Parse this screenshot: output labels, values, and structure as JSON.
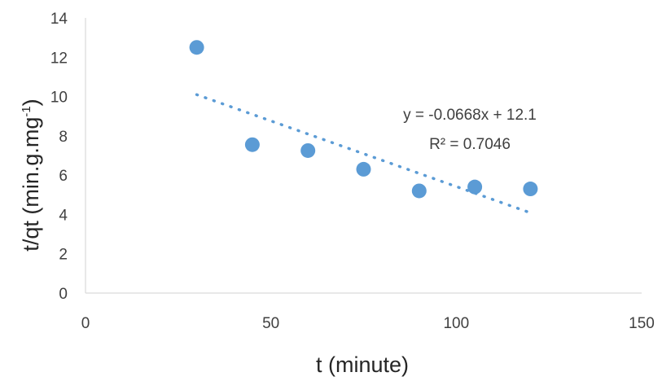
{
  "chart_data": {
    "type": "scatter",
    "title": "",
    "xlabel": "t (minute)",
    "ylabel_main": "t/qt (min.g.mg",
    "ylabel_sup": "-1",
    "ylabel_close": ")",
    "xlim": [
      0,
      150
    ],
    "ylim": [
      0,
      14
    ],
    "xticks": [
      0,
      50,
      100,
      150
    ],
    "yticks": [
      0,
      2,
      4,
      6,
      8,
      10,
      12,
      14
    ],
    "grid": false,
    "legend": "none",
    "series": [
      {
        "x": [
          30,
          45,
          60,
          75,
          90,
          105,
          120
        ],
        "y": [
          12.5,
          7.55,
          7.25,
          6.3,
          5.2,
          5.4,
          5.3
        ],
        "color": "#5b9bd5"
      }
    ],
    "trendline": {
      "type": "linear",
      "slope": -0.0668,
      "intercept": 12.1,
      "x_range": [
        30,
        120
      ],
      "style": "dotted",
      "color": "#5b9bd5",
      "equation": "y = -0.0668x + 12.1",
      "r_squared": "R² = 0.7046"
    },
    "axis_color": "#d9d9d9"
  }
}
